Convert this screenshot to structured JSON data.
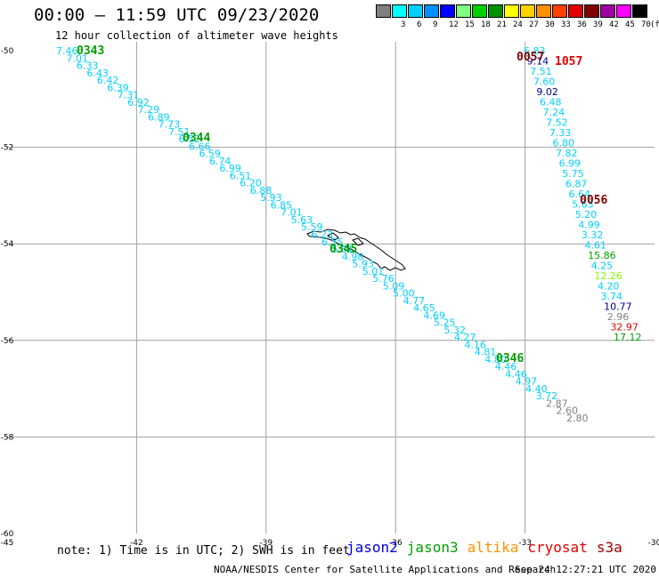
{
  "header": {
    "title": "00:00 – 11:59 UTC 09/23/2020",
    "subtitle": "12 hour collection of altimeter wave heights"
  },
  "legend": {
    "unit": "(ft)",
    "bins": [
      {
        "label": "",
        "color": "#808080"
      },
      {
        "label": "3",
        "color": "#00ffff"
      },
      {
        "label": "6",
        "color": "#00d0ff"
      },
      {
        "label": "9",
        "color": "#0090ff"
      },
      {
        "label": "12",
        "color": "#0000ff"
      },
      {
        "label": "15",
        "color": "#80ff80"
      },
      {
        "label": "18",
        "color": "#00d000"
      },
      {
        "label": "21",
        "color": "#009000"
      },
      {
        "label": "24",
        "color": "#ffff00"
      },
      {
        "label": "27",
        "color": "#ffd000"
      },
      {
        "label": "30",
        "color": "#ff9000"
      },
      {
        "label": "33",
        "color": "#ff4000"
      },
      {
        "label": "36",
        "color": "#e00000"
      },
      {
        "label": "39",
        "color": "#800000"
      },
      {
        "label": "42",
        "color": "#a000a0"
      },
      {
        "label": "45",
        "color": "#ff00ff"
      },
      {
        "label": "70",
        "color": "#000000"
      }
    ]
  },
  "map": {
    "lon_range": [
      -45,
      -30
    ],
    "lat_range": [
      -60,
      -50
    ],
    "lon_ticks": [
      "-45",
      "-42",
      "-39",
      "-36",
      "-33",
      "-30"
    ],
    "lat_ticks": [
      "-50",
      "-52",
      "-54",
      "-56",
      "-58",
      "-60"
    ],
    "grid_color": "#a0a0a0",
    "track_colors": {
      "cyan": "#00d0ff",
      "green": "#00a000",
      "light_green": "#80ff00",
      "navy": "#000090",
      "dark_red": "#800000",
      "red": "#e00000",
      "gray": "#808080",
      "black": "#000000"
    },
    "track1": {
      "values": [
        "7.46",
        "7.01",
        "6.33",
        "6.43",
        "6.42",
        "6.39",
        "7.31",
        "6.92",
        "7.29",
        "6.89",
        "7.73",
        "7.51",
        "6.52",
        "6.66",
        "6.59",
        "6.74",
        "6.99",
        "6.51",
        "6.20",
        "6.88",
        "5.93",
        "6.85",
        "7.01",
        "5.63",
        "5.59",
        "6.23",
        "6.55",
        "5.81",
        "4.98",
        "5.93",
        "5.01",
        "5.76",
        "5.09",
        "5.00",
        "4.77",
        "4.65",
        "4.69",
        "5.25",
        "5.32",
        "4.27",
        "4.16",
        "4.81",
        "4.80",
        "4.46",
        "4.46",
        "4.97",
        "4.40",
        "3.72",
        "2.87",
        "2.60",
        "2.80"
      ],
      "colors": [
        "cyan",
        "cyan",
        "cyan",
        "cyan",
        "cyan",
        "cyan",
        "cyan",
        "cyan",
        "cyan",
        "cyan",
        "cyan",
        "cyan",
        "cyan",
        "cyan",
        "cyan",
        "cyan",
        "cyan",
        "cyan",
        "cyan",
        "cyan",
        "cyan",
        "cyan",
        "cyan",
        "cyan",
        "cyan",
        "cyan",
        "cyan",
        "cyan",
        "cyan",
        "cyan",
        "cyan",
        "cyan",
        "cyan",
        "cyan",
        "cyan",
        "cyan",
        "cyan",
        "cyan",
        "cyan",
        "cyan",
        "cyan",
        "cyan",
        "cyan",
        "cyan",
        "cyan",
        "cyan",
        "cyan",
        "cyan",
        "gray",
        "gray",
        "gray"
      ]
    },
    "track2": {
      "values": [
        "6.83",
        "9.14",
        "7.51",
        "7.60",
        "9.02",
        "6.48",
        "7.24",
        "7.52",
        "7.33",
        "6.80",
        "7.82",
        "6.99",
        "5.75",
        "6.87",
        "6.64",
        "5.63",
        "5.20",
        "4.99",
        "3.32",
        "4.61",
        "15.86",
        "4.25",
        "12.26",
        "4.20",
        "3.74",
        "10.77",
        "2.96",
        "32.97",
        "17.12"
      ],
      "colors": [
        "cyan",
        "navy",
        "cyan",
        "cyan",
        "navy",
        "cyan",
        "cyan",
        "cyan",
        "cyan",
        "cyan",
        "cyan",
        "cyan",
        "cyan",
        "cyan",
        "cyan",
        "cyan",
        "cyan",
        "cyan",
        "cyan",
        "cyan",
        "green",
        "cyan",
        "light_green",
        "cyan",
        "cyan",
        "navy",
        "gray",
        "red",
        "green"
      ]
    },
    "time_labels": [
      {
        "text": "0343",
        "color": "green"
      },
      {
        "text": "0344",
        "color": "green"
      },
      {
        "text": "0345",
        "color": "green"
      },
      {
        "text": "0346",
        "color": "green"
      },
      {
        "text": "0057",
        "color": "dark_red"
      },
      {
        "text": "1057",
        "color": "red"
      },
      {
        "text": "0056",
        "color": "dark_red"
      }
    ]
  },
  "footer": {
    "note": "note: 1) Time is in UTC; 2) SWH is in feet",
    "satellites": [
      {
        "name": "jason2",
        "color": "#0000e0"
      },
      {
        "name": "jason3",
        "color": "#00a000"
      },
      {
        "name": "altika",
        "color": "#ff9000"
      },
      {
        "name": "cryosat",
        "color": "#e00000"
      },
      {
        "name": "s3a",
        "color": "#a00000"
      }
    ],
    "credit": "NOAA/NESDIS Center for Satellite Applications and Research",
    "timestamp": "Sep 24 12:27:21 UTC 2020"
  }
}
